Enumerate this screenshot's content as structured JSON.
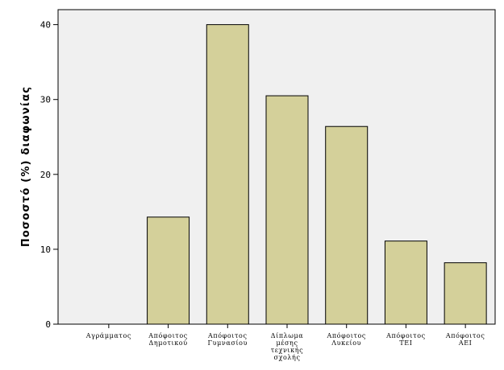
{
  "chart_data": {
    "type": "bar",
    "title": "",
    "xlabel": "",
    "ylabel": "Ποσοστό (%) διαφωνίας",
    "ylim": [
      0,
      42
    ],
    "yticks": [
      0,
      10,
      20,
      30,
      40
    ],
    "grid": false,
    "categories": [
      [
        "Αγράμματος"
      ],
      [
        "Απόφοιτος",
        "Δημοτικού"
      ],
      [
        "Απόφοιτος",
        "Γυμνασίου"
      ],
      [
        "Δίπλωμα",
        "μέσης",
        "τεχνικής",
        "σχολής"
      ],
      [
        "Απόφοιτος",
        "Λυκείου"
      ],
      [
        "Απόφοιτος",
        "ΤΕΙ"
      ],
      [
        "Απόφοιτος",
        "ΑΕΙ"
      ]
    ],
    "values": [
      0,
      14.3,
      40.0,
      30.5,
      26.4,
      11.1,
      8.2
    ],
    "bar_color": "#d4d09a",
    "plot_background": "#f0f0f0"
  }
}
